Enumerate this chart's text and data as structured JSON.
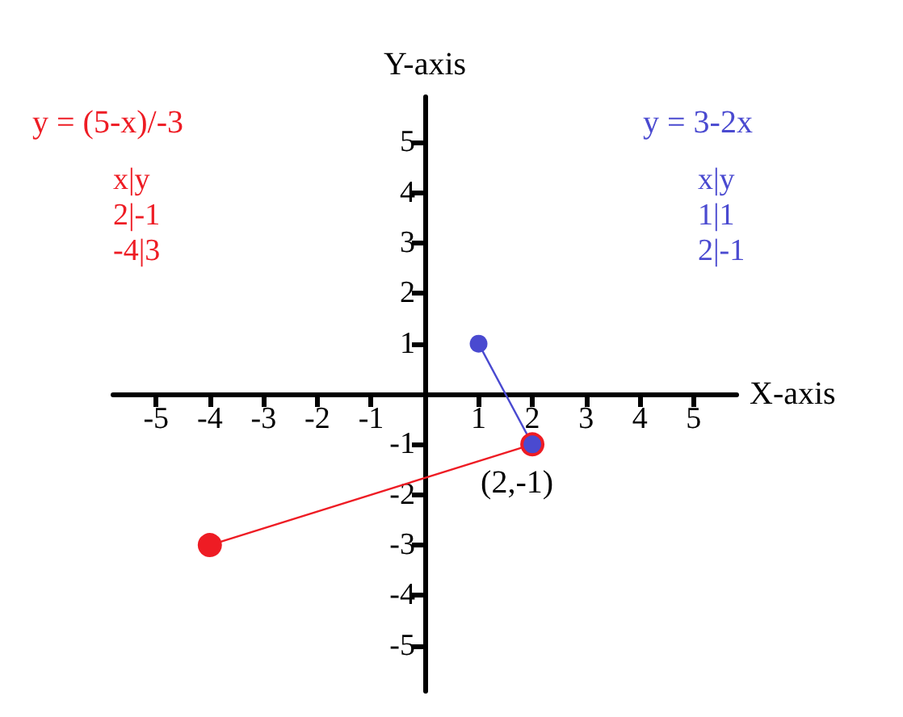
{
  "chart_data": {
    "type": "line",
    "xlabel": "X-axis",
    "ylabel": "Y-axis",
    "xlim": [
      -5.8,
      5.8
    ],
    "ylim": [
      -5.9,
      5.9
    ],
    "xticks": [
      -5,
      -4,
      -3,
      -2,
      -1,
      1,
      2,
      3,
      4,
      5
    ],
    "yticks": [
      -5,
      -4,
      -3,
      -2,
      -1,
      1,
      2,
      3,
      4,
      5
    ],
    "grid": false,
    "legend": false,
    "marker": "circle",
    "line_style": "solid",
    "series": [
      {
        "name": "y = (5-x)/-3",
        "color": "#ee1c24",
        "x": [
          -4,
          2
        ],
        "values": [
          -3,
          -1
        ]
      },
      {
        "name": "y = 3-2x",
        "color": "#4a4ad0",
        "x": [
          1,
          2
        ],
        "values": [
          1,
          -1
        ]
      }
    ],
    "annotations": [
      "x|y",
      "2|-1",
      "-4|3",
      "x|y",
      "1|1",
      "2|-1",
      {
        "text": "(2,-1)",
        "x": 2,
        "y": -1
      }
    ]
  }
}
